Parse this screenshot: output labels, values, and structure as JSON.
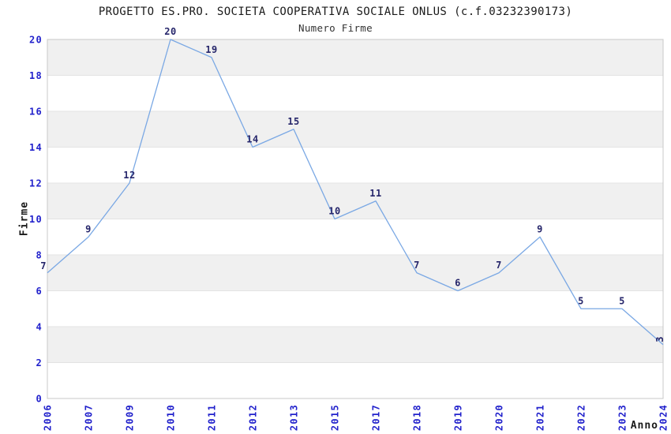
{
  "chart_data": {
    "type": "line",
    "title": "PROGETTO ES.PRO. SOCIETA COOPERATIVA SOCIALE ONLUS (c.f.03232390173)",
    "subtitle": "Numero Firme",
    "xlabel": "Anno",
    "ylabel": "Firme",
    "categories": [
      "2006",
      "2007",
      "2009",
      "2010",
      "2011",
      "2012",
      "2013",
      "2015",
      "2017",
      "2018",
      "2019",
      "2020",
      "2021",
      "2022",
      "2023",
      "2024"
    ],
    "values": [
      7,
      9,
      12,
      20,
      19,
      14,
      15,
      10,
      11,
      7,
      6,
      7,
      9,
      5,
      5,
      3
    ],
    "ylim": [
      0,
      20
    ],
    "ytick_step": 2,
    "yticks": [
      0,
      2,
      4,
      6,
      8,
      10,
      12,
      14,
      16,
      18,
      20
    ],
    "grid": "alternating-horizontal-bands",
    "legend_position": "none",
    "data_labels_visible": true,
    "x_tick_rotation_deg": 90,
    "colors": {
      "line": "#7aa8e4",
      "tick_label": "#2222cc",
      "data_label": "#26266b",
      "band_gray": "#f0f0f0",
      "band_white": "#ffffff",
      "gridline": "#e3e3e3",
      "plot_border": "#c8c8c8",
      "title": "#1a1a1a",
      "subtitle": "#333333",
      "axis_title": "#1a1a1a"
    }
  }
}
